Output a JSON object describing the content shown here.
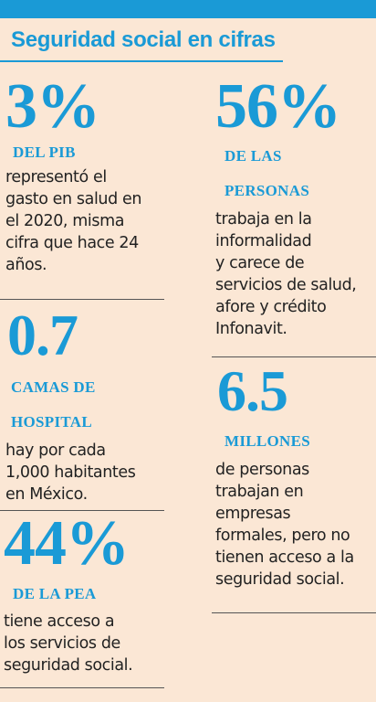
{
  "header": {
    "title": "Seguridad social en cifras",
    "accent": "#1a9ad6"
  },
  "stats": [
    {
      "value": "3%",
      "label_lines": [
        "DEL PIB"
      ],
      "desc_lines": [
        "representó el",
        "gasto en salud en",
        "el 2020, misma",
        "cifra que hace 24",
        "años."
      ]
    },
    {
      "value": "0.7",
      "label_lines": [
        "CAMAS DE",
        "HOSPITAL"
      ],
      "desc_lines": [
        "hay por cada",
        "1,000 habitantes",
        "en México."
      ]
    },
    {
      "value": "44%",
      "label_lines": [
        "DE LA PEA"
      ],
      "desc_lines": [
        "tiene acceso a",
        "los servicios de",
        "seguridad social."
      ]
    },
    {
      "value": "56%",
      "label_lines": [
        "DE LAS",
        "PERSONAS"
      ],
      "desc_lines": [
        "trabaja en la",
        "informalidad",
        "y carece de",
        "servicios de salud,",
        "afore y crédito",
        "Infonavit."
      ]
    },
    {
      "value": "6.5",
      "label_lines": [
        "MILLONES"
      ],
      "desc_lines": [
        "de personas",
        "trabajan en",
        "empresas",
        "formales, pero no",
        "tienen acceso a la",
        "seguridad social."
      ]
    }
  ]
}
